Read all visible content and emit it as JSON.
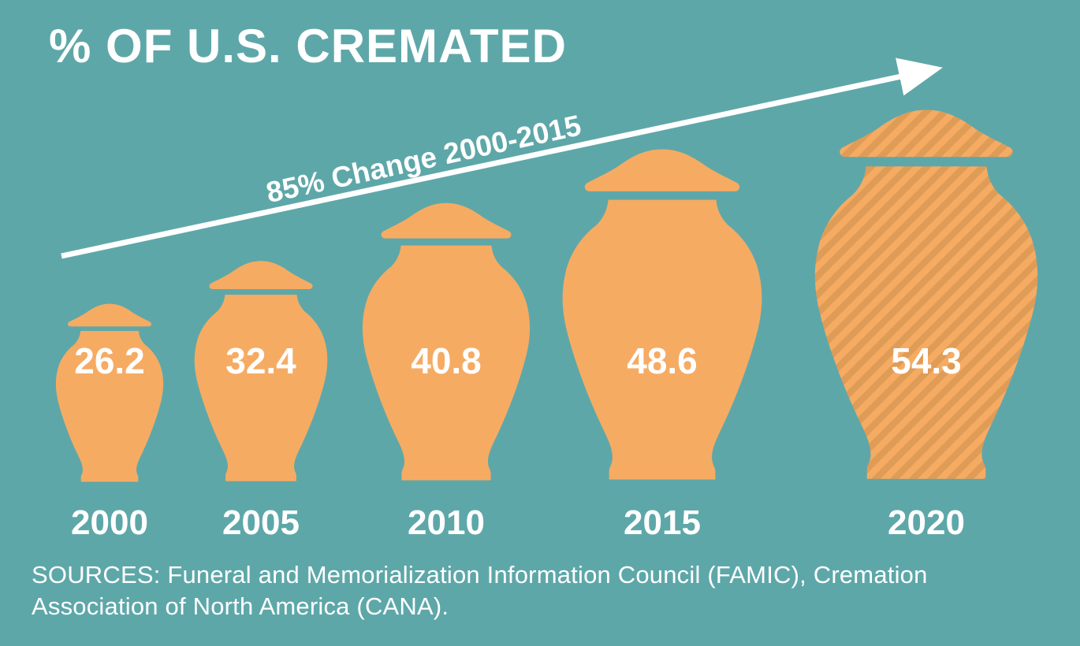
{
  "title": "% OF U.S. CREMATED",
  "annotation": {
    "label": "85% Change 2000-2015"
  },
  "sources": {
    "line1": "SOURCES: Funeral and Memorialization Information Council (FAMIC), Cremation",
    "line2": "Association of North America (CANA)."
  },
  "colors": {
    "background": "#5EA7A9",
    "urn": "#F6AB63",
    "urn_stripe_dark": "#DF9C57",
    "text": "#FFFFFF"
  },
  "chart_data": {
    "type": "bar",
    "subtype": "pictogram-urns",
    "title": "% OF U.S. CREMATED",
    "categories": [
      "2000",
      "2005",
      "2010",
      "2015",
      "2020"
    ],
    "values": [
      26.2,
      32.4,
      40.8,
      48.6,
      54.3
    ],
    "striped_categories": [
      "2020"
    ],
    "annotation": "85% Change 2000-2015",
    "value_unit": "%",
    "ylabel": "% of U.S. cremated",
    "legend": "none",
    "grid": false
  }
}
